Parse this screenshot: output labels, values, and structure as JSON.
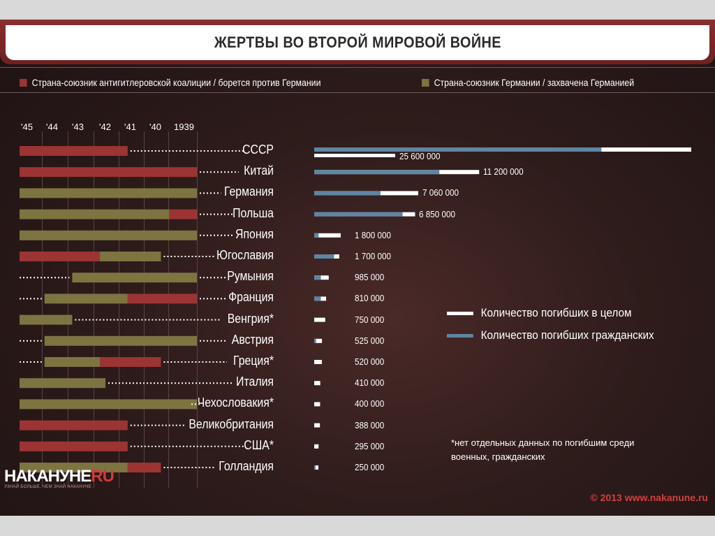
{
  "title": "ЖЕРТВЫ ВО ВТОРОЙ МИРОВОЙ ВОЙНЕ",
  "legend_top": [
    {
      "label": "Страна-союзник антигитлеровской коалиции / борется против Германии",
      "color": "#9c3434"
    },
    {
      "label": "Страна-союзник Германии / захвачена Германией",
      "color": "#7d7442"
    }
  ],
  "legend_right": [
    {
      "label": "Количество погибших в целом",
      "color": "#ffffff"
    },
    {
      "label": "Количество погибших гражданских",
      "color": "#5e86a3"
    }
  ],
  "footnote": "*нет отдельных данных по погибшим среди военных, гражданских",
  "logo": {
    "main": "НАКАНУНЕ",
    "accent": "RU",
    "tagline": "УЗНАЙ БОЛЬШЕ, ЧЕМ ЗНАЙ НАКАНУНЕ"
  },
  "copyright": "© 2013 www.nakanune.ru",
  "chart_data": [
    {
      "type": "bar",
      "orientation": "horizontal",
      "x_tick_labels": [
        "'45",
        "'44",
        "'43",
        "'42",
        "'41",
        "'40",
        "1939"
      ],
      "x_reversed": true,
      "categories": [
        "СССР",
        "Китай",
        "Германия",
        "Польша",
        "Япония",
        "Югославия",
        "Румыния",
        "Франция",
        "Венгрия*",
        "Австрия",
        "Греция*",
        "Италия",
        "Чехословакия*",
        "Великобритания",
        "США*",
        "Голландия"
      ],
      "segments": [
        [
          {
            "from": 1941.5,
            "to": 1945.4,
            "side": "allied"
          }
        ],
        [
          {
            "from": 1939.0,
            "to": 1945.4,
            "side": "allied"
          }
        ],
        [
          {
            "from": 1939.0,
            "to": 1945.4,
            "side": "axis"
          }
        ],
        [
          {
            "from": 1939.0,
            "to": 1940.0,
            "side": "allied"
          },
          {
            "from": 1940.0,
            "to": 1945.4,
            "side": "axis"
          }
        ],
        [
          {
            "from": 1939.0,
            "to": 1945.4,
            "side": "axis"
          }
        ],
        [
          {
            "from": 1940.3,
            "to": 1942.5,
            "side": "axis"
          },
          {
            "from": 1942.5,
            "to": 1945.4,
            "side": "allied"
          }
        ],
        [
          {
            "from": 1939.0,
            "to": 1943.5,
            "side": "axis"
          }
        ],
        [
          {
            "from": 1939.0,
            "to": 1941.5,
            "side": "allied"
          },
          {
            "from": 1941.5,
            "to": 1944.5,
            "side": "axis"
          }
        ],
        [
          {
            "from": 1943.5,
            "to": 1945.4,
            "side": "axis"
          }
        ],
        [
          {
            "from": 1939.0,
            "to": 1944.5,
            "side": "axis"
          }
        ],
        [
          {
            "from": 1940.3,
            "to": 1942.5,
            "side": "allied"
          },
          {
            "from": 1942.5,
            "to": 1944.5,
            "side": "axis"
          }
        ],
        [
          {
            "from": 1942.3,
            "to": 1945.4,
            "side": "axis"
          }
        ],
        [
          {
            "from": 1939.0,
            "to": 1945.4,
            "side": "axis"
          }
        ],
        [
          {
            "from": 1941.5,
            "to": 1945.4,
            "side": "allied"
          }
        ],
        [
          {
            "from": 1941.5,
            "to": 1945.4,
            "side": "allied"
          }
        ],
        [
          {
            "from": 1940.3,
            "to": 1941.5,
            "side": "allied"
          },
          {
            "from": 1941.5,
            "to": 1945.4,
            "side": "axis"
          }
        ]
      ]
    },
    {
      "type": "bar",
      "orientation": "horizontal",
      "categories": [
        "СССР",
        "Китай",
        "Германия",
        "Польша",
        "Япония",
        "Югославия",
        "Румыния",
        "Франция",
        "Венгрия*",
        "Австрия",
        "Греция*",
        "Италия",
        "Чехословакия*",
        "Великобритания",
        "США*",
        "Голландия"
      ],
      "series": [
        {
          "name": "Количество погибших в целом",
          "values": [
            25600000,
            11200000,
            7060000,
            6850000,
            1800000,
            1700000,
            985000,
            810000,
            750000,
            525000,
            520000,
            410000,
            400000,
            388000,
            295000,
            250000
          ]
        },
        {
          "name": "Количество погибших гражданских",
          "values": [
            19500000,
            8500000,
            4500000,
            6000000,
            300000,
            1350000,
            450000,
            450000,
            0,
            130000,
            0,
            0,
            0,
            0,
            0,
            90000
          ]
        }
      ],
      "value_labels": [
        "25 600 000",
        "11 200 000",
        "7 060 000",
        "6 850 000",
        "1 800 000",
        "1 700 000",
        "985 000",
        "810 000",
        "750 000",
        "525 000",
        "520 000",
        "410 000",
        "400 000",
        "388 000",
        "295 000",
        "250 000"
      ]
    }
  ]
}
